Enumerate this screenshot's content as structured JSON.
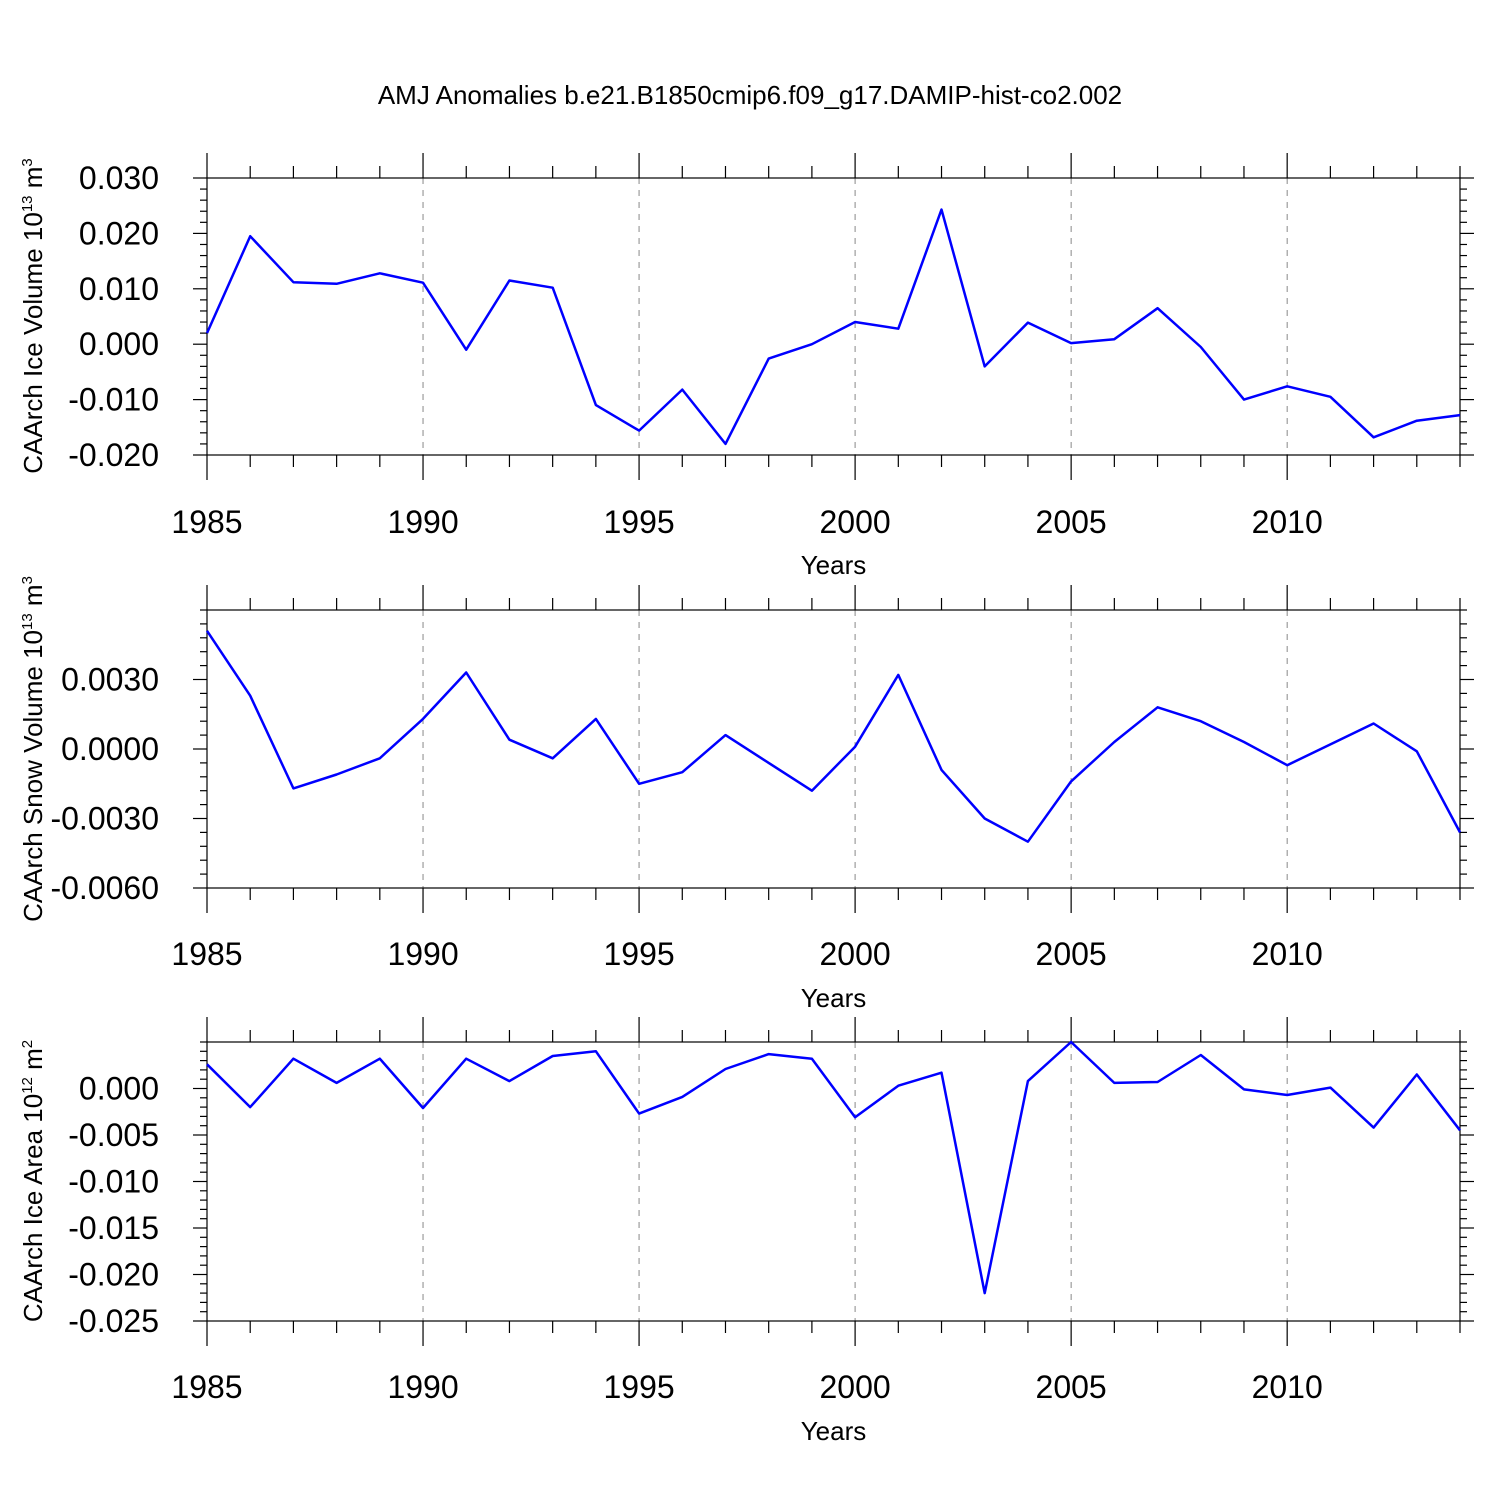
{
  "title": "AMJ Anomalies b.e21.B1850cmip6.f09_g17.DAMIP-hist-co2.002",
  "chart_data": [
    {
      "type": "line",
      "ylabel_main": "CAArch Ice Volume 10",
      "ylabel_exp": "13",
      "ylabel_unit": " m",
      "ylabel_unit_exp": "3",
      "xlabel": "Years",
      "xlim": [
        1985,
        2014
      ],
      "ylim": [
        -0.02,
        0.03
      ],
      "yticks": [
        -0.02,
        -0.01,
        0.0,
        0.01,
        0.02,
        0.03
      ],
      "ytick_labels": [
        "-0.020",
        "-0.010",
        "0.000",
        "0.010",
        "0.020",
        "0.030"
      ],
      "xticks": [
        1985,
        1990,
        1995,
        2000,
        2005,
        2010
      ],
      "xtick_labels": [
        "1985",
        "1990",
        "1995",
        "2000",
        "2005",
        "2010"
      ],
      "x": [
        1985,
        1986,
        1987,
        1988,
        1989,
        1990,
        1991,
        1992,
        1993,
        1994,
        1995,
        1996,
        1997,
        1998,
        1999,
        2000,
        2001,
        2002,
        2003,
        2004,
        2005,
        2006,
        2007,
        2008,
        2009,
        2010,
        2011,
        2012,
        2013,
        2014
      ],
      "values": [
        0.002,
        0.0195,
        0.0112,
        0.0109,
        0.0128,
        0.0111,
        -0.001,
        0.0115,
        0.0102,
        -0.011,
        -0.0156,
        -0.0082,
        -0.018,
        -0.0026,
        0.0,
        0.004,
        0.0028,
        0.0243,
        -0.004,
        0.0039,
        0.0002,
        0.0009,
        0.0065,
        -0.0005,
        -0.01,
        -0.0076,
        -0.0095,
        -0.0168,
        -0.0138,
        -0.0128
      ],
      "color": "#0000ff",
      "grid": "vertical dashed at major x ticks"
    },
    {
      "type": "line",
      "ylabel_main": "CAArch Snow Volume 10",
      "ylabel_exp": "13",
      "ylabel_unit": " m",
      "ylabel_unit_exp": "3",
      "xlabel": "Years",
      "xlim": [
        1985,
        2014
      ],
      "ylim": [
        -0.006,
        0.006
      ],
      "yticks": [
        -0.006,
        -0.003,
        0.0,
        0.003
      ],
      "ytick_labels": [
        "-0.0060",
        "-0.0030",
        "0.0000",
        "0.0030"
      ],
      "xticks": [
        1985,
        1990,
        1995,
        2000,
        2005,
        2010
      ],
      "xtick_labels": [
        "1985",
        "1990",
        "1995",
        "2000",
        "2005",
        "2010"
      ],
      "x": [
        1985,
        1986,
        1987,
        1988,
        1989,
        1990,
        1991,
        1992,
        1993,
        1994,
        1995,
        1996,
        1997,
        1998,
        1999,
        2000,
        2001,
        2002,
        2003,
        2004,
        2005,
        2006,
        2007,
        2008,
        2009,
        2010,
        2011,
        2012,
        2013,
        2014
      ],
      "values": [
        0.0051,
        0.0023,
        -0.0017,
        -0.0011,
        -0.0004,
        0.0013,
        0.0033,
        0.0004,
        -0.0004,
        0.0013,
        -0.0015,
        -0.001,
        0.0006,
        -0.0006,
        -0.0018,
        0.0001,
        0.0032,
        -0.0009,
        -0.003,
        -0.004,
        -0.0014,
        0.0003,
        0.0018,
        0.0012,
        0.0003,
        -0.0007,
        0.0002,
        0.0011,
        -0.0001,
        -0.0036
      ],
      "color": "#0000ff",
      "grid": "vertical dashed at major x ticks"
    },
    {
      "type": "line",
      "ylabel_main": "CAArch Ice Area 10",
      "ylabel_exp": "12",
      "ylabel_unit": " m",
      "ylabel_unit_exp": "2",
      "xlabel": "Years",
      "xlim": [
        1985,
        2014
      ],
      "ylim": [
        -0.025,
        0.005
      ],
      "yticks": [
        -0.025,
        -0.02,
        -0.015,
        -0.01,
        -0.005,
        0.0
      ],
      "ytick_labels": [
        "-0.025",
        "-0.020",
        "-0.015",
        "-0.010",
        "-0.005",
        "0.000"
      ],
      "xticks": [
        1985,
        1990,
        1995,
        2000,
        2005,
        2010
      ],
      "xtick_labels": [
        "1985",
        "1990",
        "1995",
        "2000",
        "2005",
        "2010"
      ],
      "x": [
        1985,
        1986,
        1987,
        1988,
        1989,
        1990,
        1991,
        1992,
        1993,
        1994,
        1995,
        1996,
        1997,
        1998,
        1999,
        2000,
        2001,
        2002,
        2003,
        2004,
        2005,
        2006,
        2007,
        2008,
        2009,
        2010,
        2011,
        2012,
        2013,
        2014
      ],
      "values": [
        0.0026,
        -0.002,
        0.0032,
        0.0006,
        0.0032,
        -0.0021,
        0.0032,
        0.0008,
        0.0035,
        0.004,
        -0.0027,
        -0.0009,
        0.0021,
        0.0037,
        0.0032,
        -0.0031,
        0.0003,
        0.0017,
        -0.022,
        0.0008,
        0.005,
        0.0006,
        0.0007,
        0.0036,
        -0.0001,
        -0.0007,
        0.0001,
        -0.0042,
        0.0015,
        -0.0045
      ],
      "color": "#0000ff",
      "grid": "vertical dashed at major x ticks"
    }
  ]
}
